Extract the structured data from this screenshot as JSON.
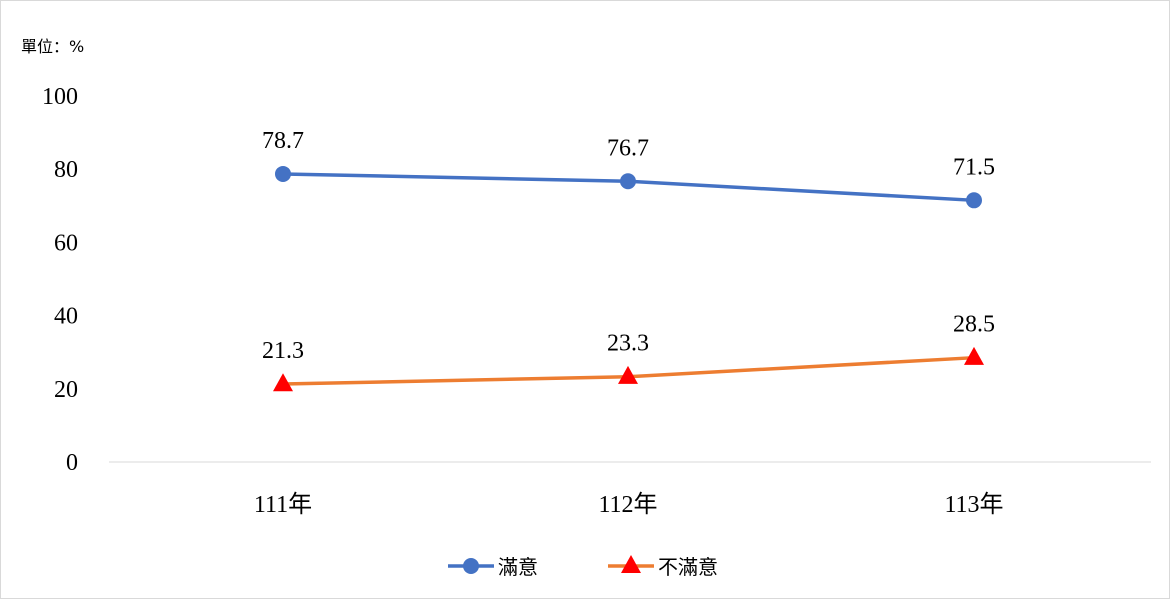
{
  "chart_data": {
    "type": "line",
    "unit_label": "單位：%",
    "categories": [
      "111年",
      "112年",
      "113年"
    ],
    "ylim": [
      0,
      100
    ],
    "yticks": [
      0,
      20,
      40,
      60,
      80,
      100
    ],
    "grid": false,
    "legend_position": "bottom",
    "series": [
      {
        "name": "滿意",
        "values": [
          78.7,
          76.7,
          71.5
        ],
        "color": "#4472c4",
        "marker": "circle"
      },
      {
        "name": "不滿意",
        "values": [
          21.3,
          23.3,
          28.5
        ],
        "color": "#ed7d31",
        "marker_color": "#ff0000",
        "marker": "triangle"
      }
    ]
  }
}
